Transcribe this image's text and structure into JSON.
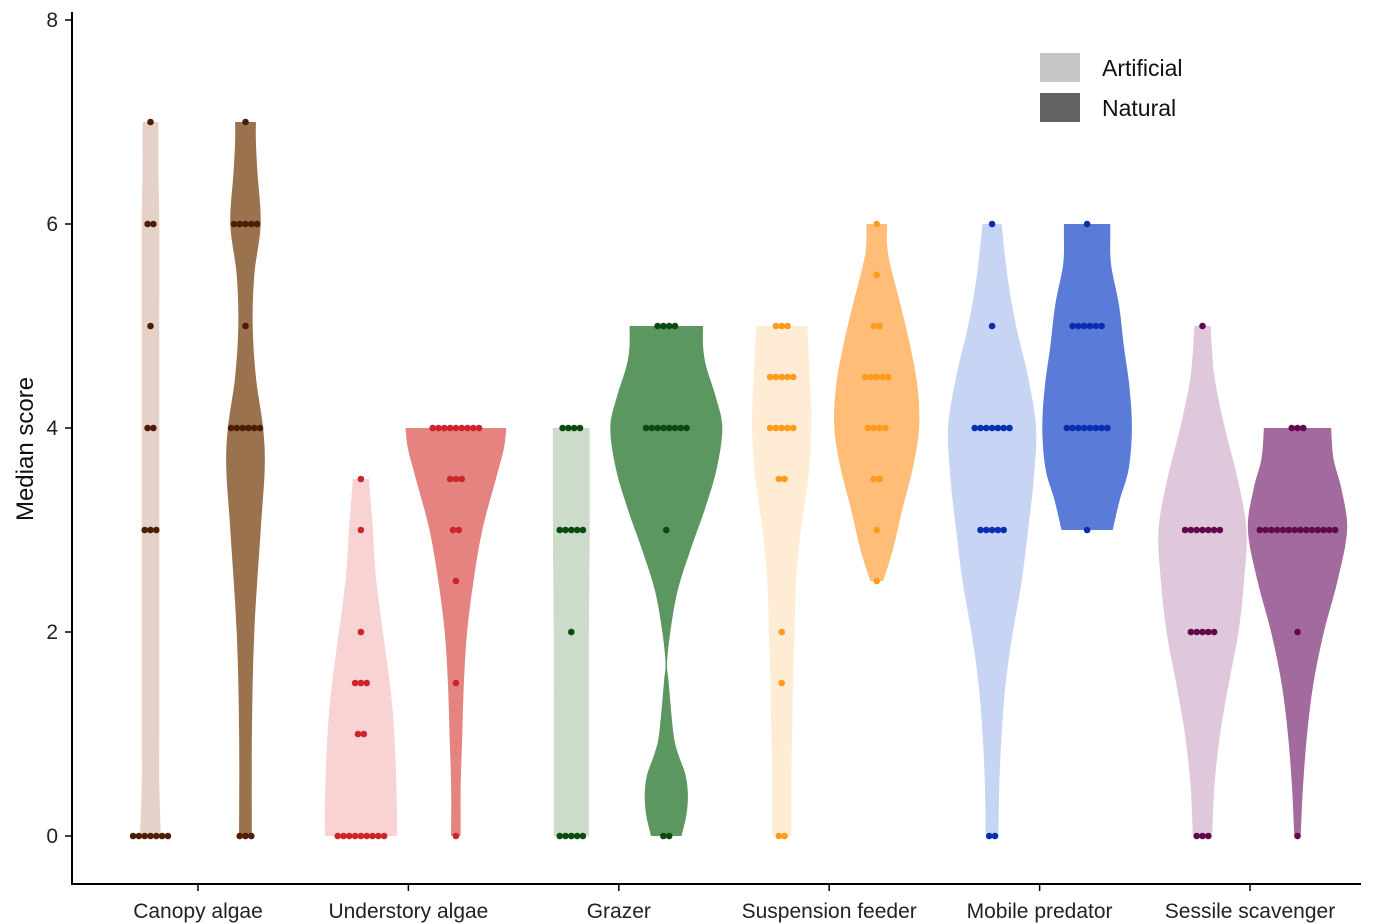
{
  "chart_data": {
    "type": "violin",
    "ylabel": "Median score",
    "xlabel": "",
    "ylim": [
      -0.6,
      8.1
    ],
    "yticks": [
      0,
      2,
      4,
      6,
      8
    ],
    "categories": [
      "Canopy algae",
      "Understory algae",
      "Grazer",
      "Suspension feeder",
      "Mobile predator",
      "Sessile scavenger"
    ],
    "legend": {
      "position": "top-right",
      "entries": [
        {
          "label": "Artificial",
          "color": "#c6c6c6"
        },
        {
          "label": "Natural",
          "color": "#636363"
        }
      ]
    },
    "groups": [
      {
        "category": "Canopy algae",
        "colors": {
          "artificial_fill": "#e4d2c8",
          "natural_fill": "#9a724e",
          "point": "#4e1d06"
        },
        "artificial": {
          "points": [
            {
              "y": 0,
              "n": 7
            },
            {
              "y": 3,
              "n": 3
            },
            {
              "y": 4,
              "n": 2
            },
            {
              "y": 5,
              "n": 1
            },
            {
              "y": 6,
              "n": 2
            },
            {
              "y": 7,
              "n": 1
            }
          ],
          "density": [
            [
              0,
              0.13
            ],
            [
              0.5,
              0.11
            ],
            [
              1,
              0.11
            ],
            [
              2,
              0.11
            ],
            [
              3,
              0.11
            ],
            [
              4,
              0.11
            ],
            [
              5,
              0.11
            ],
            [
              6,
              0.11
            ],
            [
              6.5,
              0.1
            ],
            [
              7,
              0.1
            ]
          ]
        },
        "natural": {
          "points": [
            {
              "y": 0,
              "n": 3
            },
            {
              "y": 4,
              "n": 6
            },
            {
              "y": 5,
              "n": 1
            },
            {
              "y": 6,
              "n": 5
            },
            {
              "y": 7,
              "n": 1
            }
          ],
          "density": [
            [
              0,
              0.08
            ],
            [
              1,
              0.08
            ],
            [
              2,
              0.11
            ],
            [
              3,
              0.19
            ],
            [
              3.6,
              0.24
            ],
            [
              4,
              0.22
            ],
            [
              4.5,
              0.13
            ],
            [
              5,
              0.09
            ],
            [
              5.5,
              0.11
            ],
            [
              6,
              0.19
            ],
            [
              6.5,
              0.15
            ],
            [
              6.8,
              0.13
            ],
            [
              7,
              0.13
            ]
          ]
        }
      },
      {
        "category": "Understory algae",
        "colors": {
          "artificial_fill": "#f9d3d3",
          "natural_fill": "#e48380",
          "point": "#cb2529"
        },
        "artificial": {
          "points": [
            {
              "y": 0,
              "n": 9
            },
            {
              "y": 1,
              "n": 2
            },
            {
              "y": 1.5,
              "n": 3
            },
            {
              "y": 2,
              "n": 1
            },
            {
              "y": 3,
              "n": 1
            },
            {
              "y": 3.5,
              "n": 1
            }
          ],
          "density": [
            [
              0,
              0.45
            ],
            [
              0.3,
              0.45
            ],
            [
              0.8,
              0.43
            ],
            [
              1.2,
              0.4
            ],
            [
              1.5,
              0.36
            ],
            [
              1.8,
              0.31
            ],
            [
              2.2,
              0.24
            ],
            [
              2.6,
              0.18
            ],
            [
              3,
              0.15
            ],
            [
              3.3,
              0.12
            ],
            [
              3.5,
              0.1
            ]
          ]
        },
        "natural": {
          "points": [
            {
              "y": 0,
              "n": 1
            },
            {
              "y": 1.5,
              "n": 1
            },
            {
              "y": 2.5,
              "n": 1
            },
            {
              "y": 3,
              "n": 2
            },
            {
              "y": 3.5,
              "n": 3
            },
            {
              "y": 4,
              "n": 9
            }
          ],
          "density": [
            [
              0,
              0.06
            ],
            [
              0.5,
              0.06
            ],
            [
              1,
              0.08
            ],
            [
              1.5,
              0.1
            ],
            [
              2,
              0.14
            ],
            [
              2.5,
              0.22
            ],
            [
              3,
              0.33
            ],
            [
              3.5,
              0.5
            ],
            [
              3.8,
              0.6
            ],
            [
              4,
              0.63
            ]
          ]
        }
      },
      {
        "category": "Grazer",
        "colors": {
          "artificial_fill": "#cddbca",
          "natural_fill": "#5c9660",
          "point": "#0c4a10"
        },
        "artificial": {
          "points": [
            {
              "y": 0,
              "n": 5
            },
            {
              "y": 2,
              "n": 1
            },
            {
              "y": 3,
              "n": 5
            },
            {
              "y": 4,
              "n": 4
            }
          ],
          "density": [
            [
              0,
              0.22
            ],
            [
              1,
              0.22
            ],
            [
              2,
              0.22
            ],
            [
              3,
              0.23
            ],
            [
              4,
              0.23
            ]
          ]
        },
        "natural": {
          "points": [
            {
              "y": 0,
              "n": 2
            },
            {
              "y": 3,
              "n": 1
            },
            {
              "y": 4,
              "n": 8
            },
            {
              "y": 5,
              "n": 4
            }
          ],
          "density": [
            [
              0,
              0.19
            ],
            [
              0.2,
              0.25
            ],
            [
              0.4,
              0.27
            ],
            [
              0.6,
              0.24
            ],
            [
              0.8,
              0.15
            ],
            [
              1,
              0.09
            ],
            [
              1.5,
              0.03
            ],
            [
              1.7,
              0.01
            ],
            [
              2,
              0.05
            ],
            [
              2.4,
              0.14
            ],
            [
              2.8,
              0.3
            ],
            [
              3.2,
              0.48
            ],
            [
              3.6,
              0.63
            ],
            [
              4,
              0.7
            ],
            [
              4.3,
              0.62
            ],
            [
              4.6,
              0.5
            ],
            [
              4.8,
              0.46
            ],
            [
              5,
              0.46
            ]
          ]
        }
      },
      {
        "category": "Suspension feeder",
        "colors": {
          "artificial_fill": "#ffecd4",
          "natural_fill": "#ffbd78",
          "point": "#ff9a1a"
        },
        "artificial": {
          "points": [
            {
              "y": 0,
              "n": 2
            },
            {
              "y": 1.5,
              "n": 1
            },
            {
              "y": 2,
              "n": 1
            },
            {
              "y": 3.5,
              "n": 2
            },
            {
              "y": 4,
              "n": 5
            },
            {
              "y": 4.5,
              "n": 5
            },
            {
              "y": 5,
              "n": 3
            }
          ],
          "density": [
            [
              0,
              0.12
            ],
            [
              0.5,
              0.12
            ],
            [
              1,
              0.13
            ],
            [
              1.5,
              0.14
            ],
            [
              2,
              0.16
            ],
            [
              2.5,
              0.18
            ],
            [
              3,
              0.24
            ],
            [
              3.5,
              0.33
            ],
            [
              4,
              0.37
            ],
            [
              4.5,
              0.35
            ],
            [
              5,
              0.32
            ]
          ]
        },
        "natural": {
          "points": [
            {
              "y": 2.5,
              "n": 1
            },
            {
              "y": 3,
              "n": 1
            },
            {
              "y": 3.5,
              "n": 2
            },
            {
              "y": 4,
              "n": 4
            },
            {
              "y": 4.5,
              "n": 5
            },
            {
              "y": 5,
              "n": 2
            },
            {
              "y": 5.5,
              "n": 1
            },
            {
              "y": 6,
              "n": 1
            }
          ],
          "density": [
            [
              2.5,
              0.08
            ],
            [
              2.8,
              0.2
            ],
            [
              3.2,
              0.32
            ],
            [
              3.6,
              0.45
            ],
            [
              4,
              0.53
            ],
            [
              4.4,
              0.51
            ],
            [
              4.8,
              0.42
            ],
            [
              5.2,
              0.3
            ],
            [
              5.6,
              0.17
            ],
            [
              5.8,
              0.13
            ],
            [
              6,
              0.13
            ]
          ]
        }
      },
      {
        "category": "Mobile predator",
        "colors": {
          "artificial_fill": "#c8d4f3",
          "natural_fill": "#5a7cd8",
          "point": "#0a2eb0"
        },
        "artificial": {
          "points": [
            {
              "y": 0,
              "n": 2
            },
            {
              "y": 3,
              "n": 5
            },
            {
              "y": 4,
              "n": 7
            },
            {
              "y": 5,
              "n": 1
            },
            {
              "y": 6,
              "n": 1
            }
          ],
          "density": [
            [
              0,
              0.08
            ],
            [
              0.5,
              0.09
            ],
            [
              1,
              0.12
            ],
            [
              1.5,
              0.17
            ],
            [
              2,
              0.26
            ],
            [
              2.5,
              0.37
            ],
            [
              3,
              0.45
            ],
            [
              3.5,
              0.52
            ],
            [
              4,
              0.55
            ],
            [
              4.5,
              0.45
            ],
            [
              5,
              0.3
            ],
            [
              5.5,
              0.19
            ],
            [
              6,
              0.12
            ]
          ]
        },
        "natural": {
          "points": [
            {
              "y": 3,
              "n": 1
            },
            {
              "y": 4,
              "n": 8
            },
            {
              "y": 5,
              "n": 6
            },
            {
              "y": 6,
              "n": 1
            }
          ],
          "density": [
            [
              3,
              0.32
            ],
            [
              3.3,
              0.41
            ],
            [
              3.6,
              0.52
            ],
            [
              4,
              0.56
            ],
            [
              4.4,
              0.53
            ],
            [
              4.8,
              0.46
            ],
            [
              5.2,
              0.4
            ],
            [
              5.6,
              0.3
            ],
            [
              5.9,
              0.29
            ],
            [
              6,
              0.29
            ]
          ]
        }
      },
      {
        "category": "Sessile scavenger",
        "colors": {
          "artificial_fill": "#e0c8dc",
          "natural_fill": "#a36a9d",
          "point": "#64084e"
        },
        "artificial": {
          "points": [
            {
              "y": 0,
              "n": 3
            },
            {
              "y": 2,
              "n": 5
            },
            {
              "y": 3,
              "n": 7
            },
            {
              "y": 5,
              "n": 1
            }
          ],
          "density": [
            [
              0,
              0.12
            ],
            [
              0.5,
              0.15
            ],
            [
              1,
              0.22
            ],
            [
              1.5,
              0.33
            ],
            [
              2,
              0.45
            ],
            [
              2.5,
              0.52
            ],
            [
              3,
              0.55
            ],
            [
              3.5,
              0.44
            ],
            [
              4,
              0.28
            ],
            [
              4.5,
              0.15
            ],
            [
              5,
              0.1
            ]
          ]
        },
        "natural": {
          "points": [
            {
              "y": 0,
              "n": 1
            },
            {
              "y": 2,
              "n": 1
            },
            {
              "y": 3,
              "n": 14
            },
            {
              "y": 4,
              "n": 3
            }
          ],
          "density": [
            [
              0,
              0.04
            ],
            [
              0.5,
              0.07
            ],
            [
              1,
              0.12
            ],
            [
              1.5,
              0.2
            ],
            [
              2,
              0.33
            ],
            [
              2.5,
              0.5
            ],
            [
              3,
              0.62
            ],
            [
              3.4,
              0.55
            ],
            [
              3.7,
              0.45
            ],
            [
              4,
              0.42
            ]
          ]
        }
      }
    ]
  }
}
